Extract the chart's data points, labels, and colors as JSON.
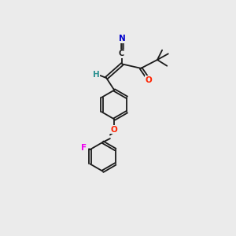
{
  "bg_color": "#ebebeb",
  "bond_color": "#1a1a1a",
  "atom_colors": {
    "N": "#0000cc",
    "O": "#ff2200",
    "F": "#ee00ee",
    "H": "#2a9090",
    "C": "#1a1a1a"
  },
  "figsize": [
    3.0,
    3.0
  ],
  "dpi": 100,
  "lw": 1.3,
  "font_size": 7.5
}
